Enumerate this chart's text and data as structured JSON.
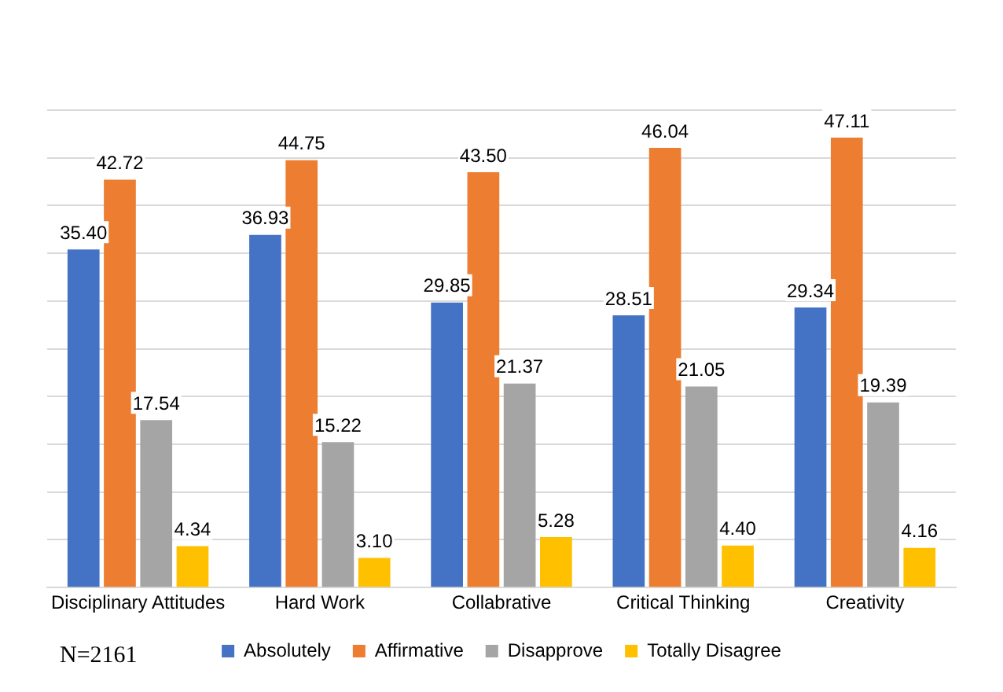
{
  "chart_data": {
    "type": "bar",
    "categories": [
      "Disciplinary Attitudes",
      "Hard Work",
      "Collabrative",
      "Critical Thinking",
      "Creativity"
    ],
    "series": [
      {
        "name": "Absolutely",
        "color": "#4472c4",
        "values": [
          35.4,
          36.93,
          29.85,
          28.51,
          29.34
        ],
        "value_labels": [
          "35.40",
          "36.93",
          "29.85",
          "28.51",
          "29.34"
        ]
      },
      {
        "name": "Affirmative",
        "color": "#ed7d31",
        "values": [
          42.72,
          44.75,
          43.5,
          46.04,
          47.11
        ],
        "value_labels": [
          "42.72",
          "44.75",
          "43.50",
          "46.04",
          "47.11"
        ]
      },
      {
        "name": "Disapprove",
        "color": "#a5a5a5",
        "values": [
          17.54,
          15.22,
          21.37,
          21.05,
          19.39
        ],
        "value_labels": [
          "17.54",
          "15.22",
          "21.37",
          "21.05",
          "19.39"
        ]
      },
      {
        "name": "Totally Disagree",
        "color": "#ffc000",
        "values": [
          4.34,
          3.1,
          5.28,
          4.4,
          4.16
        ],
        "value_labels": [
          "4.34",
          "3.10",
          "5.28",
          "4.40",
          "4.16"
        ]
      }
    ],
    "ylim": [
      0,
      50
    ],
    "yticks": [
      {
        "value": 0,
        "label": null
      },
      {
        "value": 5,
        "label": null
      },
      {
        "value": 10,
        "label": null
      },
      {
        "value": 15,
        "label": null
      },
      {
        "value": 20,
        "label": null
      },
      {
        "value": 25,
        "label": null
      },
      {
        "value": 30,
        "label": null
      },
      {
        "value": 35,
        "label": null
      },
      {
        "value": 40,
        "label": null
      },
      {
        "value": 45,
        "label": null
      },
      {
        "value": 50,
        "label": null
      }
    ],
    "tick_labels": "x",
    "grid": "y",
    "legend": "bottom",
    "annotations": [
      "N=2161"
    ]
  }
}
